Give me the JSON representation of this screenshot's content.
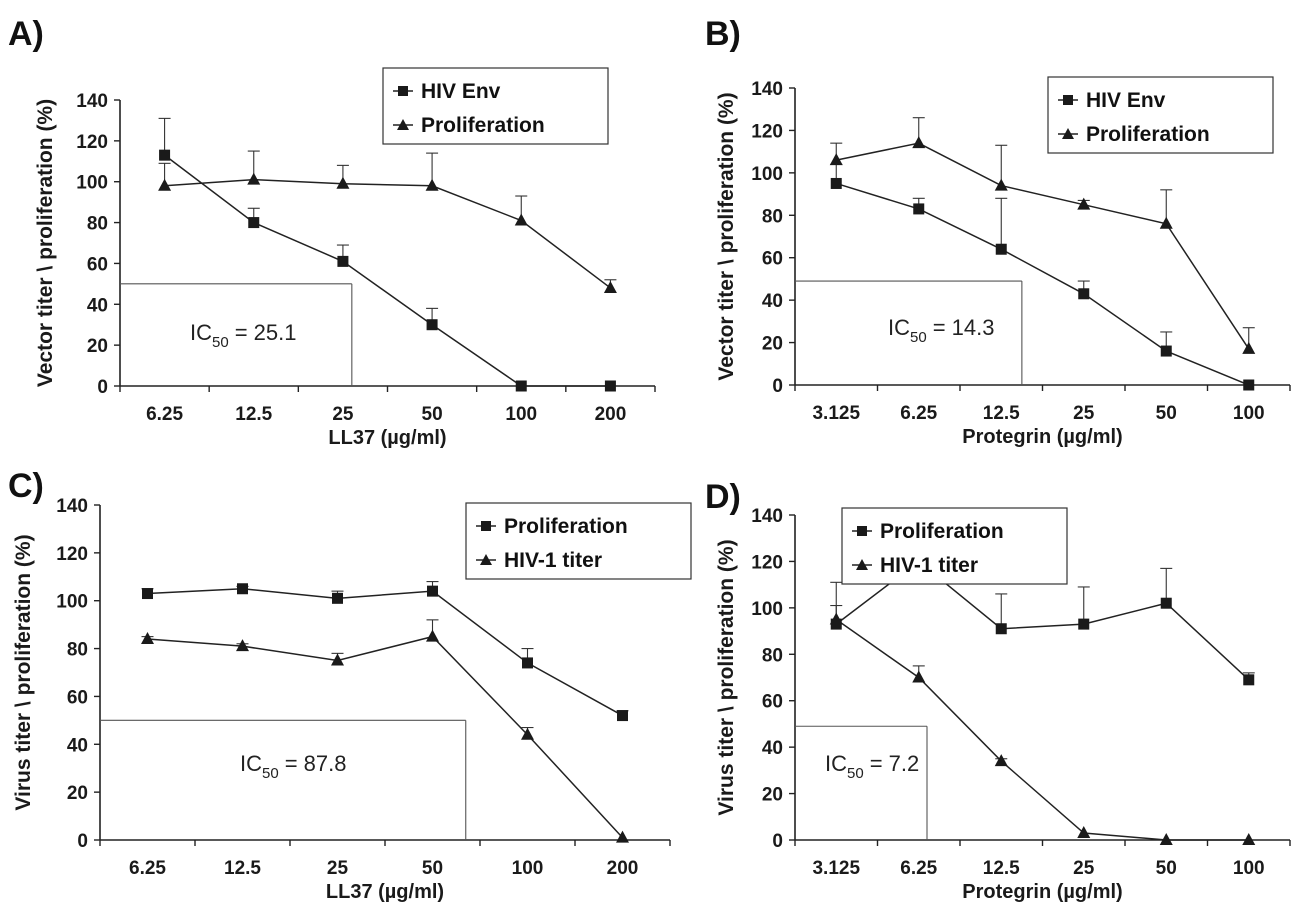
{
  "chart_data": [
    {
      "type": "line",
      "panel": "A)",
      "xlabel": "LL37 (µg/ml)",
      "ylabel": "Vector titer \\ proliferation (%)",
      "categories": [
        "6.25",
        "12.5",
        "25",
        "50",
        "100",
        "200"
      ],
      "ylim": [
        0,
        140
      ],
      "yticks": [
        0,
        20,
        40,
        60,
        80,
        100,
        120,
        140
      ],
      "series": [
        {
          "name": "HIV Env",
          "marker": "square",
          "values": [
            113,
            80,
            61,
            30,
            0,
            0
          ],
          "errors": [
            18,
            7,
            8,
            8,
            0,
            0
          ]
        },
        {
          "name": "Proliferation",
          "marker": "triangle",
          "values": [
            98,
            101,
            99,
            98,
            81,
            48
          ],
          "errors": [
            11,
            14,
            9,
            16,
            12,
            4
          ]
        }
      ],
      "legend": "top-right",
      "ic50": {
        "label": "IC",
        "sub": "50",
        "value": "= 25.1",
        "y": 50,
        "x_index": 2.6
      }
    },
    {
      "type": "line",
      "panel": "B)",
      "xlabel": "Protegrin (µg/ml)",
      "ylabel": "Vector titer \\ proliferation (%)",
      "categories": [
        "3.125",
        "6.25",
        "12.5",
        "25",
        "50",
        "100"
      ],
      "ylim": [
        0,
        140
      ],
      "yticks": [
        0,
        20,
        40,
        60,
        80,
        100,
        120,
        140
      ],
      "series": [
        {
          "name": "HIV Env",
          "marker": "square",
          "values": [
            95,
            83,
            64,
            43,
            16,
            0
          ],
          "errors": [
            9,
            5,
            24,
            6,
            9,
            0
          ]
        },
        {
          "name": "Proliferation",
          "marker": "triangle",
          "values": [
            106,
            114,
            94,
            85,
            76,
            17
          ],
          "errors": [
            8,
            12,
            19,
            2,
            16,
            10
          ]
        }
      ],
      "legend": "top-right",
      "ic50": {
        "label": "IC",
        "sub": "50",
        "value": "= 14.3",
        "y": 49,
        "x_index": 2.75
      }
    },
    {
      "type": "line",
      "panel": "C)",
      "xlabel": "LL37 (µg/ml)",
      "ylabel": "Virus titer \\ proliferation (%)",
      "categories": [
        "6.25",
        "12.5",
        "25",
        "50",
        "100",
        "200"
      ],
      "ylim": [
        0,
        140
      ],
      "yticks": [
        0,
        20,
        40,
        60,
        80,
        100,
        120,
        140
      ],
      "series": [
        {
          "name": "Proliferation",
          "marker": "square",
          "values": [
            103,
            105,
            101,
            104,
            74,
            52
          ],
          "errors": [
            2,
            1,
            3,
            4,
            6,
            2
          ]
        },
        {
          "name": "HIV-1 titer",
          "marker": "triangle",
          "values": [
            84,
            81,
            75,
            85,
            44,
            1
          ],
          "errors": [
            1,
            1,
            3,
            7,
            3,
            0
          ]
        }
      ],
      "legend": "top-right",
      "ic50": {
        "label": "IC",
        "sub": "50",
        "value": "= 87.8",
        "y": 50,
        "x_index": 3.85
      }
    },
    {
      "type": "line",
      "panel": "D)",
      "xlabel": "Protegrin (µg/ml)",
      "ylabel": "Virus titer \\ proliferation (%)",
      "categories": [
        "3.125",
        "6.25",
        "12.5",
        "25",
        "50",
        "100"
      ],
      "ylim": [
        0,
        140
      ],
      "yticks": [
        0,
        20,
        40,
        60,
        80,
        100,
        120,
        140
      ],
      "series": [
        {
          "name": "Proliferation",
          "marker": "square",
          "values": [
            93,
            120,
            91,
            93,
            102,
            69
          ],
          "errors": [
            18,
            13,
            15,
            16,
            15,
            3
          ]
        },
        {
          "name": "HIV-1 titer",
          "marker": "triangle",
          "values": [
            95,
            70,
            34,
            3,
            0,
            0
          ],
          "errors": [
            6,
            5,
            1,
            0,
            0,
            0
          ]
        }
      ],
      "legend": "top-left",
      "ic50": {
        "label": "IC",
        "sub": "50",
        "value": "= 7.2",
        "y": 49,
        "x_index": 1.6
      }
    }
  ]
}
